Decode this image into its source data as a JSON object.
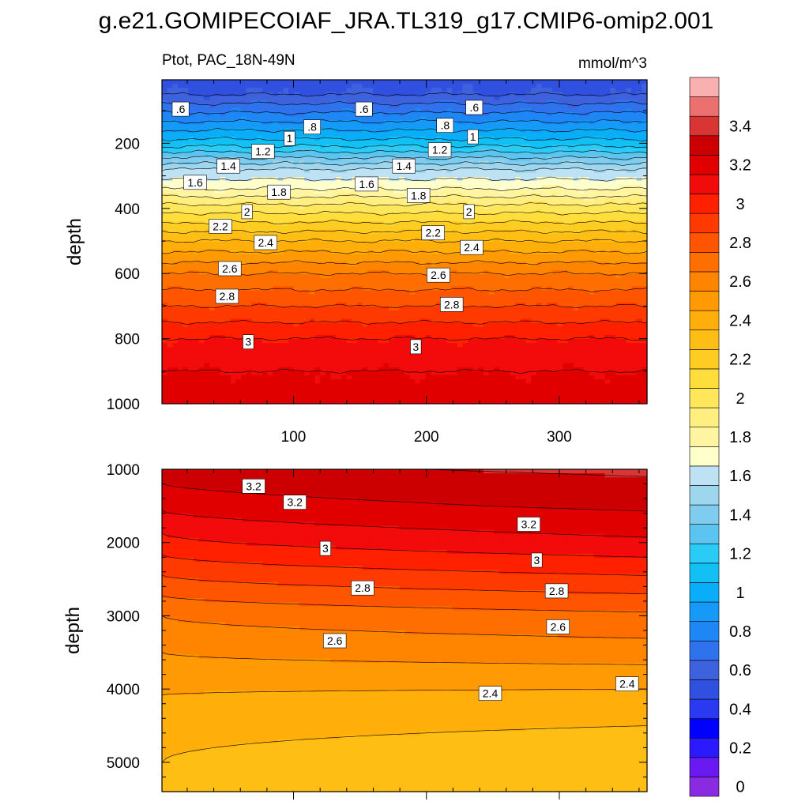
{
  "chart_data": [
    {
      "type": "contour",
      "title": "g.e21.GOMIPECOIAF_JRA.TL319_g17.CMIP6-omip2.001",
      "left_string": "Ptot, PAC_18N-49N",
      "right_string": "mmol/m^3",
      "xlabel": "",
      "ylabel": "depth",
      "xlim": [
        1,
        366
      ],
      "ylim": [
        1000,
        5
      ],
      "xticks": [
        100,
        200,
        300
      ],
      "xtick_labels": [
        "100",
        "200",
        "300"
      ],
      "yticks": [
        200,
        400,
        600,
        800,
        1000
      ],
      "ytick_labels": [
        "200",
        "400",
        "600",
        "800",
        "1000"
      ],
      "profile": [
        {
          "depth": 5,
          "value": 0.45
        },
        {
          "depth": 50,
          "value": 0.5
        },
        {
          "depth": 120,
          "value": 0.75
        },
        {
          "depth": 200,
          "value": 1.05
        },
        {
          "depth": 280,
          "value": 1.5
        },
        {
          "depth": 340,
          "value": 1.7
        },
        {
          "depth": 400,
          "value": 1.95
        },
        {
          "depth": 500,
          "value": 2.3
        },
        {
          "depth": 600,
          "value": 2.6
        },
        {
          "depth": 700,
          "value": 2.8
        },
        {
          "depth": 800,
          "value": 3.0
        },
        {
          "depth": 900,
          "value": 3.1
        },
        {
          "depth": 1000,
          "value": 3.15
        }
      ],
      "contour_labels": [
        {
          "text": ".6",
          "x": 15,
          "depth": 95
        },
        {
          "text": ".6",
          "x": 153,
          "depth": 95
        },
        {
          "text": ".6",
          "x": 236,
          "depth": 90
        },
        {
          "text": ".8",
          "x": 114,
          "depth": 150
        },
        {
          "text": ".8",
          "x": 214,
          "depth": 145
        },
        {
          "text": "1",
          "x": 97,
          "depth": 185
        },
        {
          "text": "1",
          "x": 235,
          "depth": 180
        },
        {
          "text": "1.2",
          "x": 77,
          "depth": 225
        },
        {
          "text": "1.2",
          "x": 210,
          "depth": 220
        },
        {
          "text": "1.4",
          "x": 51,
          "depth": 270
        },
        {
          "text": "1.4",
          "x": 183,
          "depth": 270
        },
        {
          "text": "1.6",
          "x": 26,
          "depth": 320
        },
        {
          "text": "1.6",
          "x": 155,
          "depth": 325
        },
        {
          "text": "1.8",
          "x": 89,
          "depth": 350
        },
        {
          "text": "1.8",
          "x": 194,
          "depth": 360
        },
        {
          "text": "2",
          "x": 65,
          "depth": 410
        },
        {
          "text": "2",
          "x": 232,
          "depth": 410
        },
        {
          "text": "2.2",
          "x": 45,
          "depth": 455
        },
        {
          "text": "2.2",
          "x": 205,
          "depth": 475
        },
        {
          "text": "2.4",
          "x": 79,
          "depth": 505
        },
        {
          "text": "2.4",
          "x": 234,
          "depth": 520
        },
        {
          "text": "2.6",
          "x": 52,
          "depth": 585
        },
        {
          "text": "2.6",
          "x": 209,
          "depth": 605
        },
        {
          "text": "2.8",
          "x": 50,
          "depth": 670
        },
        {
          "text": "2.8",
          "x": 219,
          "depth": 695
        },
        {
          "text": "3",
          "x": 66,
          "depth": 810
        },
        {
          "text": "3",
          "x": 192,
          "depth": 825
        }
      ]
    },
    {
      "type": "contour",
      "xlabel": "",
      "ylabel": "depth",
      "xlim": [
        1,
        366
      ],
      "ylim": [
        5400,
        1000
      ],
      "xticks": [
        100,
        200,
        300
      ],
      "yticks": [
        1000,
        2000,
        3000,
        4000,
        5000
      ],
      "ytick_labels": [
        "1000",
        "2000",
        "3000",
        "4000",
        "5000"
      ],
      "left_column_profile": [
        {
          "depth": 1000,
          "value": 3.25
        },
        {
          "depth": 1500,
          "value": 3.12
        },
        {
          "depth": 2000,
          "value": 2.96
        },
        {
          "depth": 2500,
          "value": 2.78
        },
        {
          "depth": 3000,
          "value": 2.6
        },
        {
          "depth": 3500,
          "value": 2.5
        },
        {
          "depth": 4000,
          "value": 2.41
        },
        {
          "depth": 4500,
          "value": 2.35
        },
        {
          "depth": 5000,
          "value": 2.3
        },
        {
          "depth": 5400,
          "value": 2.28
        }
      ],
      "right_column_profile": [
        {
          "depth": 1000,
          "value": 3.32
        },
        {
          "depth": 1500,
          "value": 3.22
        },
        {
          "depth": 2000,
          "value": 3.08
        },
        {
          "depth": 2500,
          "value": 2.88
        },
        {
          "depth": 3000,
          "value": 2.68
        },
        {
          "depth": 3500,
          "value": 2.55
        },
        {
          "depth": 4000,
          "value": 2.4
        },
        {
          "depth": 4500,
          "value": 2.3
        },
        {
          "depth": 5000,
          "value": 2.22
        },
        {
          "depth": 5400,
          "value": 2.2
        }
      ],
      "contour_labels": [
        {
          "text": "3.2",
          "x": 70,
          "depth": 1230
        },
        {
          "text": "3.2",
          "x": 101,
          "depth": 1450
        },
        {
          "text": "3.2",
          "x": 277,
          "depth": 1750
        },
        {
          "text": "3",
          "x": 124,
          "depth": 2080
        },
        {
          "text": "3",
          "x": 283,
          "depth": 2240
        },
        {
          "text": "2.8",
          "x": 152,
          "depth": 2620
        },
        {
          "text": "2.8",
          "x": 298,
          "depth": 2660
        },
        {
          "text": "2.6",
          "x": 131,
          "depth": 3340
        },
        {
          "text": "2.6",
          "x": 299,
          "depth": 3150
        },
        {
          "text": "2.4",
          "x": 248,
          "depth": 4060
        },
        {
          "text": "2.4",
          "x": 351,
          "depth": 3930
        }
      ]
    }
  ],
  "colorbar": {
    "levels": [
      0,
      0.1,
      0.2,
      0.3,
      0.4,
      0.5,
      0.6,
      0.7,
      0.8,
      0.9,
      1.0,
      1.1,
      1.2,
      1.3,
      1.4,
      1.5,
      1.6,
      1.7,
      1.8,
      1.9,
      2.0,
      2.1,
      2.2,
      2.3,
      2.4,
      2.5,
      2.6,
      2.7,
      2.8,
      2.9,
      3.0,
      3.1,
      3.2,
      3.3,
      3.4,
      3.5
    ],
    "labels": [
      "0",
      "0.2",
      "0.4",
      "0.6",
      "0.8",
      "1",
      "1.2",
      "1.4",
      "1.6",
      "1.8",
      "2",
      "2.2",
      "2.4",
      "2.6",
      "2.8",
      "3",
      "3.2",
      "3.4"
    ],
    "colors": [
      "#8A2BE2",
      "#6A1AF0",
      "#2B1AFF",
      "#0000FF",
      "#2A3AF0",
      "#3050E0",
      "#3E62DE",
      "#2E72EE",
      "#1E86F5",
      "#159AF8",
      "#0AAEF8",
      "#12C0F4",
      "#2ACBF4",
      "#5CC4F0",
      "#7FCCEE",
      "#9ED6EE",
      "#BCE2F4",
      "#FFFFCC",
      "#FFF5A0",
      "#FFEE80",
      "#FFE65A",
      "#FFDD3A",
      "#FFCC22",
      "#FFBE14",
      "#FFAE0A",
      "#FF9A05",
      "#FF8500",
      "#FF6F00",
      "#FF5500",
      "#FF3A00",
      "#FF2000",
      "#F20B0B",
      "#E00000",
      "#CC0000",
      "#D93535",
      "#EC7070",
      "#F8B0B0"
    ]
  }
}
